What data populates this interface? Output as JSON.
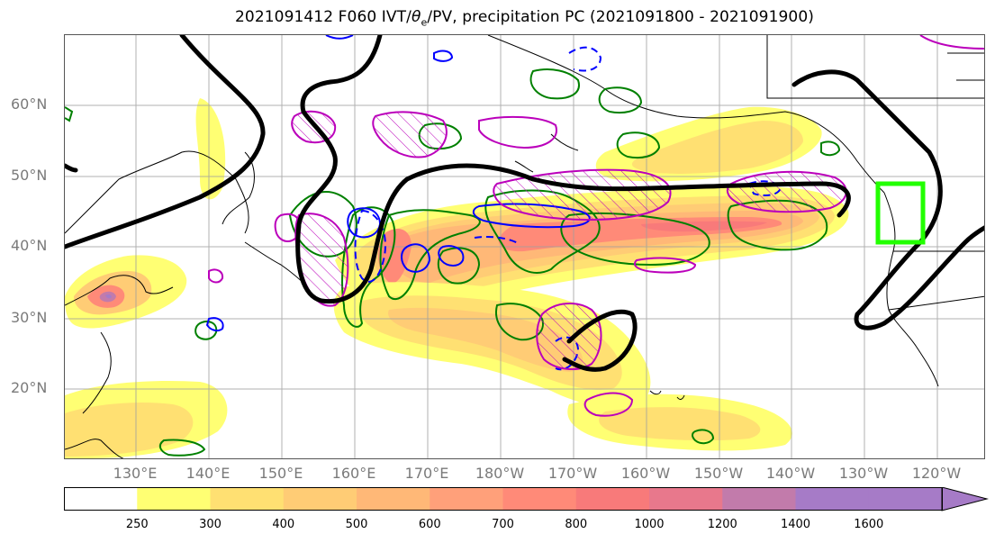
{
  "title": {
    "prefix": "2021091412 F060 IVT/",
    "theta": "θ",
    "theta_sub": "e",
    "suffix": "/PV, precipitation PC (2021091800 - 2021091900)"
  },
  "map": {
    "lat_labels": [
      "60°N",
      "50°N",
      "40°N",
      "30°N",
      "20°N"
    ],
    "lon_labels": [
      "130°E",
      "140°E",
      "150°E",
      "160°E",
      "170°E",
      "180°W",
      "170°W",
      "160°W",
      "150°W",
      "140°W",
      "130°W",
      "120°W"
    ],
    "target_box_color": "#22ff00",
    "contour_colors": {
      "jet": "#000000",
      "pv": "#0000ff",
      "theta_e": "#008000",
      "precip": "#bb00bb"
    }
  },
  "colorbar": {
    "ticks": [
      "250",
      "300",
      "400",
      "500",
      "600",
      "700",
      "800",
      "1000",
      "1200",
      "1400",
      "1600"
    ],
    "colors": [
      "#ffffff",
      "#ffff73",
      "#ffe072",
      "#ffcc75",
      "#ffb877",
      "#ffa07a",
      "#ff8a78",
      "#f87a7a",
      "#e8788c",
      "#c27bab",
      "#a67bc7"
    ]
  }
}
